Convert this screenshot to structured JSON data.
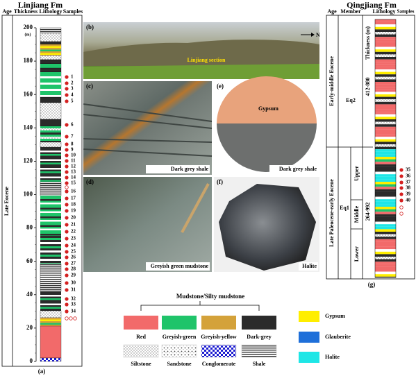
{
  "left_column": {
    "title": "Linjiang Fm",
    "headers": [
      "Age",
      "Thickness",
      "Lithology",
      "Samples"
    ],
    "thickness_unit": "(m)",
    "thickness_ticks": [
      0,
      20,
      40,
      60,
      80,
      100,
      120,
      140,
      160,
      180,
      200
    ],
    "age": "Late Eocene",
    "samples": [
      1,
      2,
      3,
      4,
      5,
      6,
      7,
      8,
      9,
      10,
      11,
      12,
      13,
      14,
      15,
      16,
      17,
      18,
      19,
      20,
      21,
      22,
      23,
      24,
      25,
      26,
      27,
      28,
      29,
      30,
      31,
      32,
      33,
      34
    ],
    "label": "(a)"
  },
  "photos": [
    {
      "label": "(b)",
      "captions": [
        "Linjiang section"
      ],
      "north": "N"
    },
    {
      "label": "(c)",
      "captions": [
        "Dark grey shale"
      ]
    },
    {
      "label": "(e)",
      "captions": [
        "Gypsum",
        "Dark grey shale"
      ]
    },
    {
      "label": "(d)",
      "captions": [
        "Greyish green  mudstone"
      ]
    },
    {
      "label": "(f)",
      "captions": [
        "Halite"
      ]
    }
  ],
  "legend": {
    "group_title": "Mudstone/Silty mudstone",
    "mudstones": [
      "Red",
      "Greyish-green",
      "Greyish-yellow",
      "Dark-grey"
    ],
    "others": [
      "Siltstone",
      "Sandstone",
      "Conglomerate",
      "Shale"
    ],
    "minerals": [
      "Gypsum",
      "Glauberite",
      "Halite"
    ]
  },
  "right_column": {
    "title": "Qingjiang Fm",
    "headers": [
      "Age",
      "Member",
      "Lithology",
      "Samples"
    ],
    "thickness_header": "Thickness (m)",
    "upper": {
      "age": "Early-middle Eocene",
      "member": "Eq2",
      "thickness": "412-880"
    },
    "lower": {
      "age": "Late Paleocene-early Eocene",
      "member": "Eq1",
      "submembers": [
        "Upper",
        "Middle",
        "Lower"
      ],
      "thickness": "264-992"
    },
    "samples": [
      35,
      36,
      37,
      38,
      39,
      40
    ],
    "label": "(g)"
  }
}
